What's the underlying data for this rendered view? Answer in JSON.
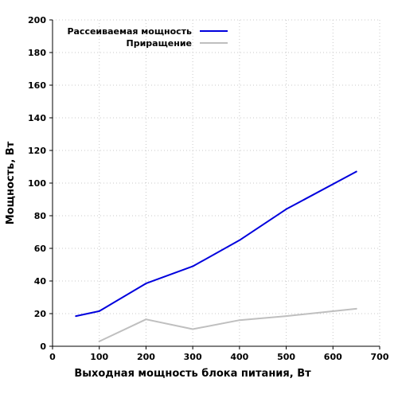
{
  "chart_data": {
    "type": "line",
    "title": "",
    "xlabel": "Выходная мощность блока питания, Вт",
    "ylabel": "Мощность, Вт",
    "xlim": [
      0,
      700
    ],
    "ylim": [
      0,
      200
    ],
    "xticks": [
      0,
      100,
      200,
      300,
      400,
      500,
      600,
      700
    ],
    "yticks": [
      0,
      20,
      40,
      60,
      80,
      100,
      120,
      140,
      160,
      180,
      200
    ],
    "xtick_labels": [
      "0",
      "100",
      "200",
      "300",
      "400",
      "500",
      "600",
      "700"
    ],
    "ytick_labels": [
      "0",
      "20",
      "40",
      "60",
      "80",
      "100",
      "120",
      "140",
      "160",
      "180",
      "200"
    ],
    "grid": true,
    "legend_position": "top-left",
    "series": [
      {
        "name": "Рассеиваемая мощность",
        "color": "#0000dd",
        "x": [
          50,
          100,
          200,
          300,
          400,
          500,
          650
        ],
        "y": [
          18.5,
          21.5,
          38.5,
          49,
          65,
          84,
          107
        ]
      },
      {
        "name": "Приращение",
        "color": "#bfbfbf",
        "x": [
          100,
          200,
          300,
          400,
          500,
          650
        ],
        "y": [
          3,
          16.5,
          10.5,
          16,
          18.5,
          23
        ]
      }
    ]
  }
}
